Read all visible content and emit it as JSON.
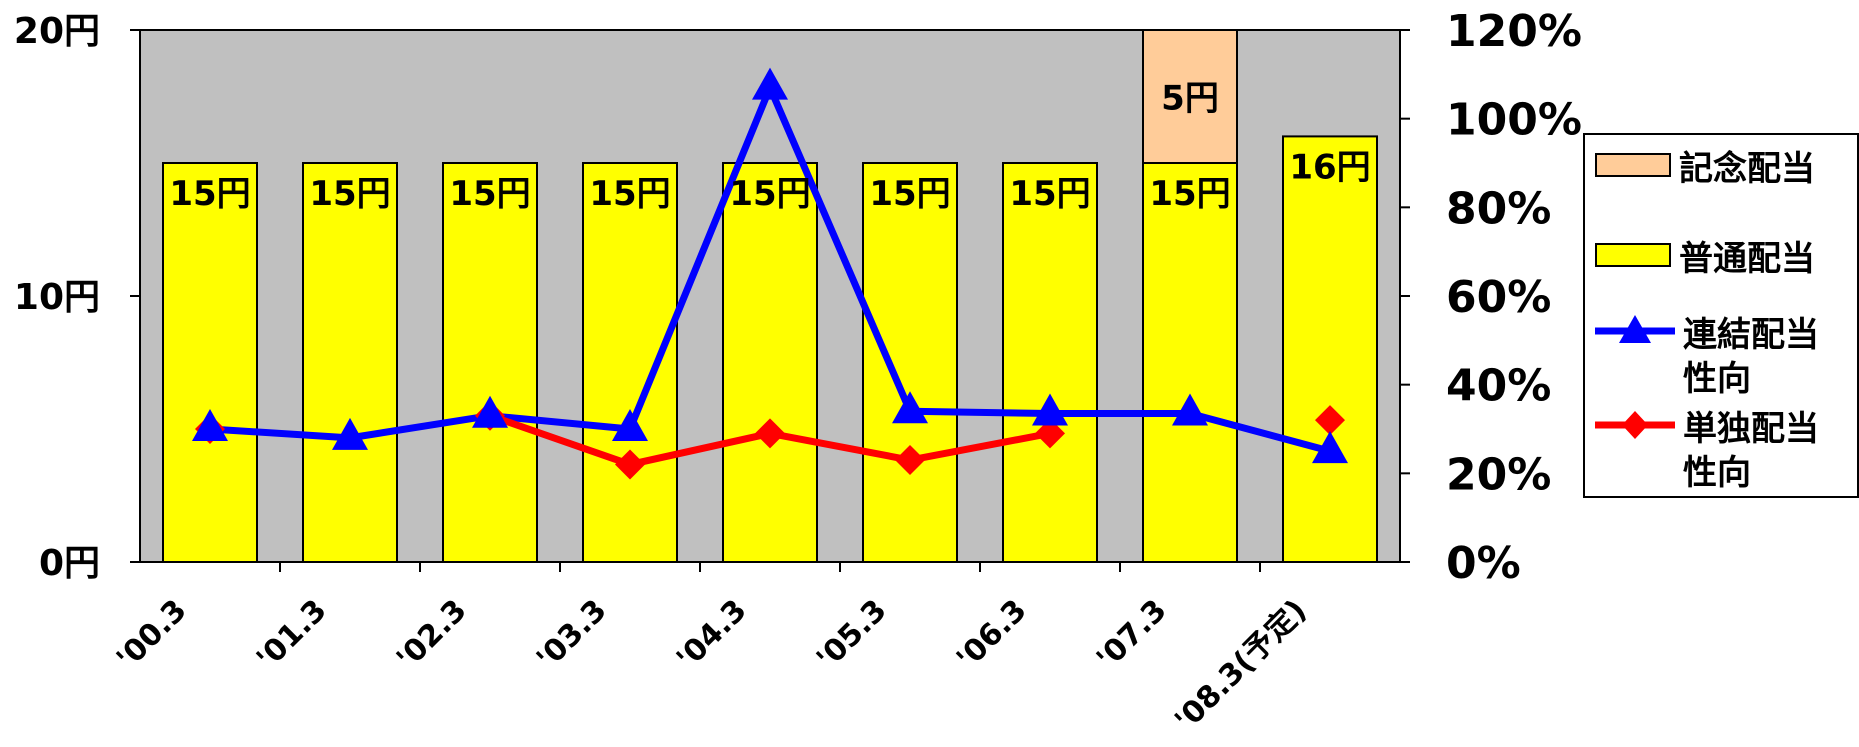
{
  "chart_data": {
    "type": "bar",
    "categories": [
      "'00.3",
      "'01.3",
      "'02.3",
      "'03.3",
      "'04.3",
      "'05.3",
      "'06.3",
      "'07.3",
      "'08.3(予定)"
    ],
    "left_axis": {
      "ticks": [
        "0円",
        "10円",
        "20円"
      ],
      "ylim": [
        0,
        20
      ]
    },
    "right_axis": {
      "ticks": [
        "0%",
        "20%",
        "40%",
        "60%",
        "80%",
        "100%",
        "120%"
      ],
      "ylim": [
        0,
        120
      ]
    },
    "bar_series": [
      {
        "name": "普通配当",
        "color": "#ffff00",
        "values": [
          15,
          15,
          15,
          15,
          15,
          15,
          15,
          15,
          16
        ],
        "labels": [
          "15円",
          "15円",
          "15円",
          "15円",
          "15円",
          "15円",
          "15円",
          "15円",
          "16円"
        ]
      },
      {
        "name": "記念配当",
        "color": "#ffcc99",
        "values": [
          0,
          0,
          0,
          0,
          0,
          0,
          0,
          5,
          0
        ],
        "labels": [
          "",
          "",
          "",
          "",
          "",
          "",
          "",
          "5円",
          ""
        ]
      }
    ],
    "line_series": [
      {
        "name": "連結配当性向",
        "color": "#0000ff",
        "marker": "triangle",
        "values": [
          30,
          28,
          33,
          30,
          107,
          34,
          33.5,
          33.5,
          25
        ]
      },
      {
        "name": "単独配当性向",
        "color": "#ff0000",
        "marker": "diamond",
        "values": [
          30,
          null,
          33,
          22,
          29,
          23,
          29,
          null,
          32
        ]
      }
    ],
    "plot_background": "#c0c0c0",
    "legend_placement": "right"
  },
  "legend": {
    "items": [
      {
        "label": "記念配当",
        "kind": "box",
        "color": "#ffcc99"
      },
      {
        "label": "普通配当",
        "kind": "box",
        "color": "#ffff00"
      },
      {
        "label": "連結配当\n性向",
        "kind": "line",
        "color": "#0000ff",
        "marker": "triangle"
      },
      {
        "label": "単独配当\n性向",
        "kind": "line",
        "color": "#ff0000",
        "marker": "diamond"
      }
    ]
  }
}
